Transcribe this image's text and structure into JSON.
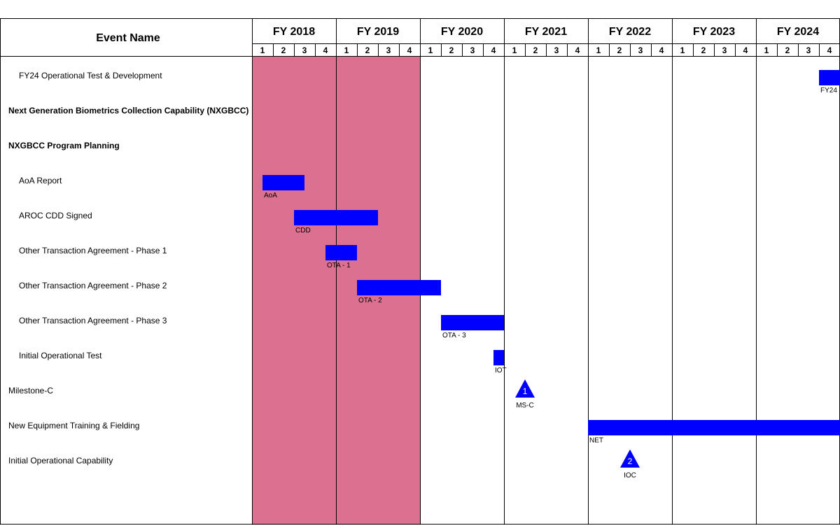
{
  "chart_data": {
    "type": "gantt",
    "header_label": "Event Name",
    "fiscal_years": [
      "FY 2018",
      "FY 2019",
      "FY 2020",
      "FY 2021",
      "FY 2022",
      "FY 2023",
      "FY 2024"
    ],
    "quarter_labels": [
      "1",
      "2",
      "3",
      "4"
    ],
    "shaded_years": [
      "FY 2018",
      "FY 2019"
    ],
    "colors": {
      "shade": "#DC7090",
      "bar": "#0000FF",
      "grid": "#000000",
      "milestone_text": "#ffffff"
    },
    "rows": [
      {
        "name": "FY24 Operational Test & Development",
        "bold": false,
        "indent": 1,
        "bar": {
          "start": "FY 2024 Q4",
          "end": "FY 2024 Q4 end",
          "label": "FY24"
        }
      },
      {
        "name": "Next Generation Biometrics Collection Capability (NXGBCC)",
        "bold": true,
        "indent": 0
      },
      {
        "name": "NXGBCC Program Planning",
        "bold": true,
        "indent": 0
      },
      {
        "name": "AoA Report",
        "bold": false,
        "indent": 1,
        "bar": {
          "start": "FY 2018 Q1 mid",
          "end": "FY 2018 Q3 mid",
          "label": "AoA"
        }
      },
      {
        "name": "AROC CDD Signed",
        "bold": false,
        "indent": 1,
        "bar": {
          "start": "FY 2018 Q3",
          "end": "FY 2019 Q2 end",
          "label": "CDD"
        }
      },
      {
        "name": "Other Transaction Agreement - Phase 1",
        "bold": false,
        "indent": 1,
        "bar": {
          "start": "FY 2018 Q4 mid",
          "end": "FY 2019 Q1 end",
          "label": "OTA - 1"
        }
      },
      {
        "name": "Other Transaction Agreement - Phase 2",
        "bold": false,
        "indent": 1,
        "bar": {
          "start": "FY 2019 Q2",
          "end": "FY 2020 Q1 end",
          "label": "OTA - 2"
        }
      },
      {
        "name": "Other Transaction Agreement - Phase 3",
        "bold": false,
        "indent": 1,
        "bar": {
          "start": "FY 2020 Q2",
          "end": "FY 2020 Q4 end",
          "label": "OTA - 3"
        }
      },
      {
        "name": "Initial Operational Test",
        "bold": false,
        "indent": 1,
        "bar": {
          "start": "FY 2020 Q4 mid",
          "end": "FY 2020 Q4 end",
          "label": "IOT"
        }
      },
      {
        "name": "Milestone-C",
        "bold": false,
        "indent": 0,
        "milestone": {
          "at": "FY 2021 Q1 end",
          "number": "1",
          "label": "MS-C"
        }
      },
      {
        "name": "New Equipment Training & Fielding",
        "bold": false,
        "indent": 0,
        "bar": {
          "start": "FY 2022 Q1",
          "end": "FY 2024 Q4 end",
          "label": "NET"
        }
      },
      {
        "name": "Initial Operational Capability",
        "bold": false,
        "indent": 0,
        "milestone": {
          "at": "FY 2022 Q3",
          "number": "2",
          "label": "IOC"
        }
      }
    ]
  }
}
